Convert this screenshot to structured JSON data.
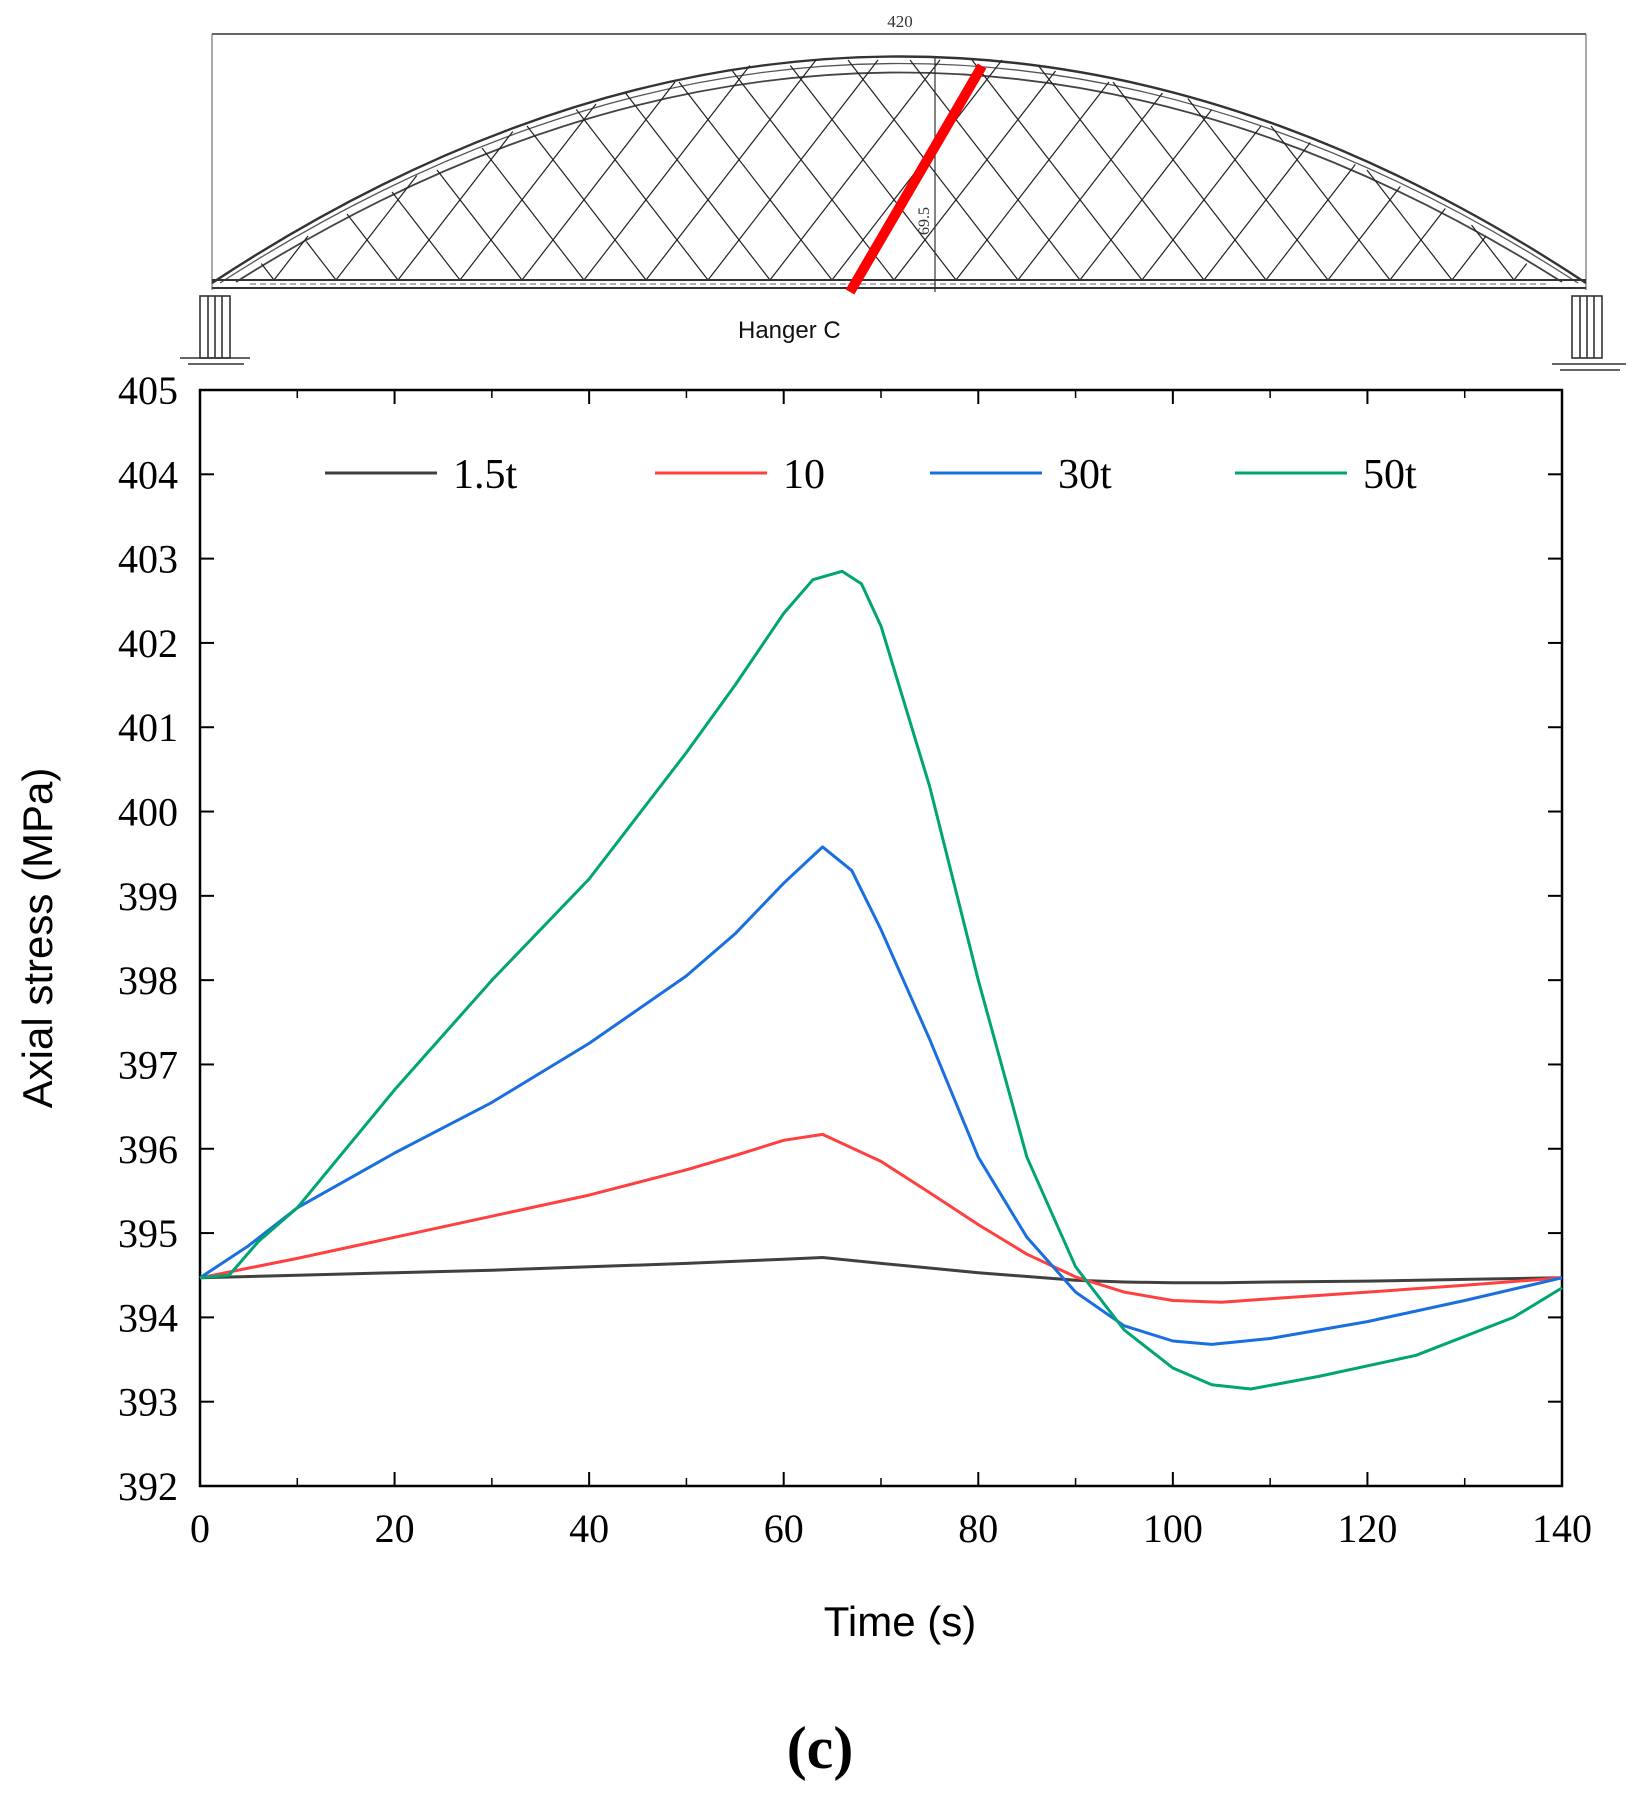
{
  "bridge": {
    "span_label": "420",
    "rise_label": "69.5",
    "hanger_label": "Hanger C",
    "hanger_color": "#ff0000"
  },
  "panel_label": "(c)",
  "chart_data": {
    "type": "line",
    "title": "",
    "xlabel": "Time (s)",
    "ylabel": "Axial stress (MPa)",
    "xlim": [
      0,
      140
    ],
    "ylim": [
      392,
      405
    ],
    "xticks": [
      0,
      20,
      40,
      60,
      80,
      100,
      120,
      140
    ],
    "yticks": [
      392,
      393,
      394,
      395,
      396,
      397,
      398,
      399,
      400,
      401,
      402,
      403,
      404,
      405
    ],
    "grid": false,
    "legend_position": "top",
    "series": [
      {
        "name": "1.5t",
        "color": "#404040",
        "x": [
          0,
          10,
          20,
          30,
          40,
          50,
          60,
          64,
          70,
          80,
          90,
          95,
          100,
          105,
          110,
          120,
          130,
          140
        ],
        "y": [
          394.47,
          394.5,
          394.53,
          394.56,
          394.6,
          394.64,
          394.69,
          394.71,
          394.64,
          394.53,
          394.44,
          394.42,
          394.41,
          394.41,
          394.42,
          394.43,
          394.45,
          394.47
        ]
      },
      {
        "name": "10",
        "color": "#ff4040",
        "x": [
          0,
          10,
          20,
          30,
          40,
          50,
          55,
          60,
          64,
          70,
          75,
          80,
          85,
          90,
          95,
          100,
          105,
          110,
          120,
          130,
          140
        ],
        "y": [
          394.47,
          394.7,
          394.95,
          395.2,
          395.45,
          395.75,
          395.92,
          396.1,
          396.17,
          395.85,
          395.48,
          395.1,
          394.75,
          394.48,
          394.3,
          394.2,
          394.18,
          394.22,
          394.3,
          394.38,
          394.47
        ]
      },
      {
        "name": "30t",
        "color": "#1a6fe0",
        "x": [
          0,
          5,
          10,
          20,
          30,
          40,
          50,
          55,
          60,
          64,
          67,
          70,
          75,
          80,
          85,
          90,
          95,
          100,
          104,
          110,
          120,
          130,
          140
        ],
        "y": [
          394.47,
          394.85,
          395.3,
          395.95,
          396.55,
          397.25,
          398.05,
          398.55,
          399.15,
          399.58,
          399.3,
          398.6,
          397.3,
          395.9,
          394.95,
          394.3,
          393.9,
          393.72,
          393.68,
          393.75,
          393.95,
          394.2,
          394.47
        ]
      },
      {
        "name": "50t",
        "color": "#00a572",
        "x": [
          0,
          3,
          6,
          10,
          20,
          30,
          40,
          50,
          55,
          60,
          63,
          66,
          68,
          70,
          75,
          80,
          85,
          90,
          95,
          100,
          104,
          108,
          115,
          125,
          135,
          140
        ],
        "y": [
          394.47,
          394.5,
          394.9,
          395.3,
          396.7,
          398.0,
          399.2,
          400.7,
          401.5,
          402.35,
          402.75,
          402.85,
          402.7,
          402.2,
          400.3,
          398.0,
          395.9,
          394.6,
          393.85,
          393.4,
          393.2,
          393.15,
          393.3,
          393.55,
          394.0,
          394.35
        ]
      }
    ]
  }
}
